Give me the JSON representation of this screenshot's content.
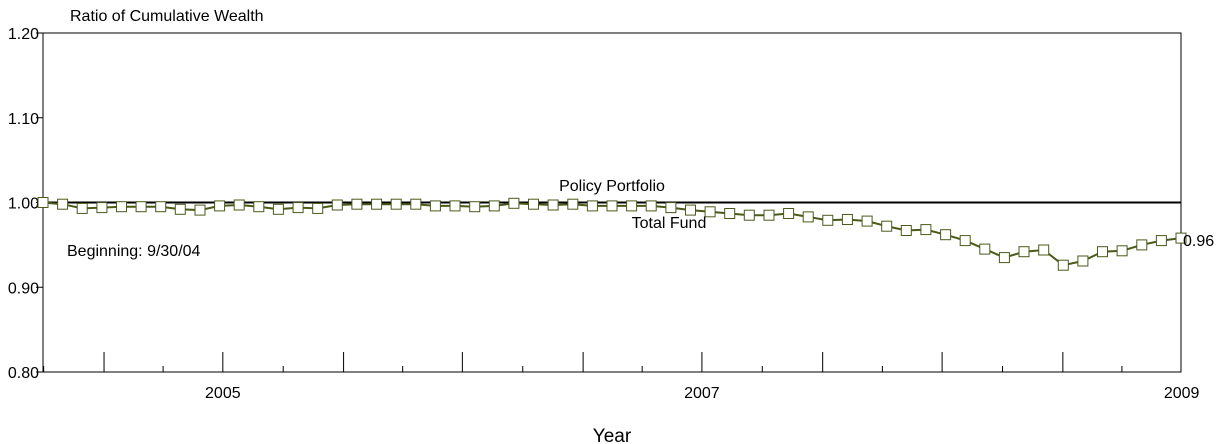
{
  "chart_data": {
    "type": "line",
    "ylabel": "Ratio of Cumulative Wealth",
    "xlabel": "Year",
    "ylim": [
      0.8,
      1.2
    ],
    "yticks": [
      "0.80",
      "0.90",
      "1.00",
      "1.10",
      "1.20"
    ],
    "x_range": [
      "2004-09-30",
      "2009-06-30"
    ],
    "x_tick_labels": [
      "2005",
      "2007",
      "2009"
    ],
    "grid": false,
    "annotations": {
      "beginning": "Beginning:  9/30/04",
      "end_value": "0.96"
    },
    "series": [
      {
        "name": "Policy Portfolio",
        "color": "#000000",
        "marker": "none",
        "values": [
          1.0,
          1.0
        ]
      },
      {
        "name": "Total Fund",
        "color": "#4a5a1a",
        "marker": "square",
        "marker_fill": "#ffffff",
        "values": [
          1.0,
          0.998,
          0.993,
          0.994,
          0.995,
          0.995,
          0.995,
          0.992,
          0.991,
          0.996,
          0.997,
          0.995,
          0.992,
          0.994,
          0.993,
          0.997,
          0.998,
          0.998,
          0.998,
          0.998,
          0.996,
          0.996,
          0.995,
          0.996,
          0.999,
          0.998,
          0.997,
          0.998,
          0.996,
          0.996,
          0.996,
          0.996,
          0.994,
          0.991,
          0.989,
          0.987,
          0.985,
          0.985,
          0.987,
          0.983,
          0.979,
          0.98,
          0.978,
          0.972,
          0.967,
          0.968,
          0.962,
          0.955,
          0.945,
          0.935,
          0.942,
          0.944,
          0.926,
          0.931,
          0.942,
          0.943,
          0.95,
          0.955,
          0.958
        ]
      }
    ]
  }
}
